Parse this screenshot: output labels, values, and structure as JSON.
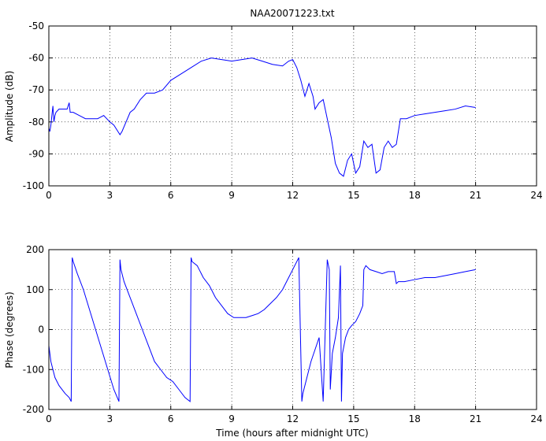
{
  "chart_data": [
    {
      "type": "line",
      "title": "NAA20071223.txt",
      "xlabel": "",
      "ylabel": "Amplitude (dB)",
      "xlim": [
        0,
        24
      ],
      "ylim": [
        -100,
        -50
      ],
      "xticks": [
        "0",
        "3",
        "6",
        "9",
        "12",
        "15",
        "18",
        "21",
        "24"
      ],
      "yticks": [
        "-100",
        "-90",
        "-80",
        "-70",
        "-60",
        "-50"
      ],
      "grid": true,
      "color": "#0000ff",
      "series": [
        {
          "x": [
            0,
            0.05,
            0.1,
            0.15,
            0.2,
            0.25,
            0.3,
            0.35,
            0.5,
            0.7,
            0.9,
            1.0,
            1.05,
            1.2,
            1.5,
            1.8,
            2.1,
            2.4,
            2.7,
            3.0,
            3.2,
            3.4,
            3.5,
            3.6,
            3.8,
            4.0,
            4.2,
            4.5,
            4.8,
            5.2,
            5.6,
            6.0,
            6.5,
            7.0,
            7.5,
            8.0,
            8.5,
            9.0,
            9.5,
            10.0,
            10.5,
            11.0,
            11.5,
            11.8,
            12.0,
            12.2,
            12.4,
            12.6,
            12.8,
            13.0,
            13.1,
            13.3,
            13.5,
            13.7,
            13.9,
            14.1,
            14.3,
            14.5,
            14.7,
            14.9,
            15.1,
            15.3,
            15.5,
            15.7,
            15.9,
            16.1,
            16.3,
            16.5,
            16.7,
            16.9,
            17.1,
            17.3,
            17.6,
            18.0,
            18.5,
            19.0,
            19.5,
            20.0,
            20.5,
            21.0
          ],
          "y": [
            -82,
            -83,
            -81,
            -78,
            -75,
            -80,
            -78,
            -77,
            -76,
            -76,
            -76,
            -74,
            -77,
            -77,
            -78,
            -79,
            -79,
            -79,
            -78,
            -80,
            -81,
            -83,
            -84,
            -83,
            -80,
            -77,
            -76,
            -73,
            -71,
            -71,
            -70,
            -67,
            -65,
            -63,
            -61,
            -60,
            -60.5,
            -61,
            -60.5,
            -60,
            -61,
            -62,
            -62.5,
            -61,
            -60.5,
            -63,
            -67,
            -72,
            -68,
            -72,
            -76,
            -74,
            -73,
            -79,
            -85,
            -93,
            -96,
            -97,
            -92,
            -90,
            -96,
            -94,
            -86,
            -88,
            -87,
            -96,
            -95,
            -88,
            -86,
            -88,
            -87,
            -79,
            -79,
            -78,
            -77.5,
            -77,
            -76.5,
            -76,
            -75,
            -75.5
          ]
        }
      ]
    },
    {
      "type": "line",
      "title": "",
      "xlabel": "Time (hours after midnight UTC)",
      "ylabel": "Phase (degrees)",
      "xlim": [
        0,
        24
      ],
      "ylim": [
        -200,
        200
      ],
      "xticks": [
        "0",
        "3",
        "6",
        "9",
        "12",
        "15",
        "18",
        "21",
        "24"
      ],
      "yticks": [
        "-200",
        "-100",
        "0",
        "100",
        "200"
      ],
      "grid": true,
      "color": "#0000ff",
      "series": [
        {
          "x": [
            0,
            0.1,
            0.2,
            0.3,
            0.5,
            0.8,
            1.0,
            1.1,
            1.15,
            1.2,
            1.4,
            1.7,
            2.0,
            2.3,
            2.6,
            2.9,
            3.2,
            3.45,
            3.5,
            3.55,
            3.7,
            4.0,
            4.3,
            4.6,
            4.9,
            5.2,
            5.5,
            5.8,
            6.1,
            6.4,
            6.7,
            6.95,
            7.0,
            7.05,
            7.3,
            7.6,
            7.9,
            8.2,
            8.5,
            8.8,
            9.1,
            9.4,
            9.7,
            10.0,
            10.3,
            10.6,
            10.9,
            11.2,
            11.5,
            11.8,
            12.1,
            12.3,
            12.45,
            12.5,
            12.55,
            12.7,
            12.9,
            13.1,
            13.3,
            13.5,
            13.7,
            13.8,
            13.85,
            13.95,
            14.1,
            14.25,
            14.35,
            14.4,
            14.45,
            14.6,
            14.75,
            14.9,
            15.1,
            15.3,
            15.45,
            15.5,
            15.6,
            15.8,
            16.1,
            16.4,
            16.7,
            17.0,
            17.1,
            17.2,
            17.5,
            18.0,
            18.5,
            19.0,
            19.5,
            20.0,
            20.5,
            21.0
          ],
          "y": [
            -40,
            -80,
            -100,
            -120,
            -140,
            -160,
            -170,
            -180,
            180,
            170,
            140,
            100,
            50,
            0,
            -50,
            -100,
            -150,
            -180,
            175,
            150,
            120,
            80,
            40,
            0,
            -40,
            -80,
            -100,
            -120,
            -130,
            -150,
            -170,
            -180,
            180,
            170,
            160,
            130,
            110,
            80,
            60,
            40,
            30,
            30,
            30,
            35,
            40,
            50,
            65,
            80,
            100,
            130,
            160,
            180,
            -180,
            -160,
            -150,
            -120,
            -80,
            -50,
            -20,
            -180,
            175,
            150,
            -150,
            -60,
            -20,
            30,
            160,
            -180,
            -60,
            -20,
            0,
            10,
            20,
            40,
            60,
            150,
            160,
            150,
            145,
            140,
            145,
            145,
            115,
            120,
            120,
            125,
            130,
            130,
            135,
            140,
            145,
            150
          ]
        }
      ]
    }
  ]
}
